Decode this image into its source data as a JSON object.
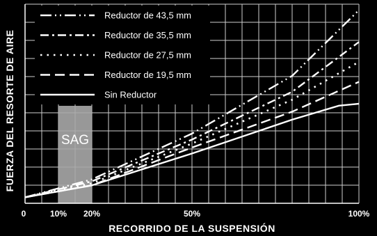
{
  "chart_data": {
    "type": "line",
    "xlabel": "RECORRIDO DE LA SUSPENSIÓN",
    "ylabel": "FUERZA DEL RESORTE DE AIRE",
    "xlim": [
      0,
      100
    ],
    "ylim": [
      0,
      100
    ],
    "grid": true,
    "legend_position": "top-left",
    "x_ticks": [
      {
        "value": 0,
        "label": "0"
      },
      {
        "value": 10,
        "label": "10%"
      },
      {
        "value": 20,
        "label": "20%"
      },
      {
        "value": 50,
        "label": "50%"
      },
      {
        "value": 100,
        "label": "100%"
      }
    ],
    "sag": {
      "label": "SAG",
      "from": 10,
      "to": 20
    },
    "series": [
      {
        "name": "Reductor de 43,5 mm",
        "style": "dash-dot-dot",
        "x": [
          0,
          20,
          50,
          80,
          100
        ],
        "y": [
          3,
          12,
          35,
          64,
          97
        ]
      },
      {
        "name": "Reductor de 35,5 mm",
        "style": "dash-dot",
        "x": [
          0,
          20,
          50,
          80,
          100
        ],
        "y": [
          3,
          11,
          32,
          56,
          81
        ]
      },
      {
        "name": "Reductor de 27,5 mm",
        "style": "dotted",
        "x": [
          0,
          20,
          50,
          80,
          100
        ],
        "y": [
          3,
          10,
          30,
          52,
          71
        ]
      },
      {
        "name": "Reductor de 19,5 mm",
        "style": "dashed",
        "x": [
          0,
          20,
          50,
          80,
          100
        ],
        "y": [
          3,
          9,
          28,
          46,
          61
        ]
      },
      {
        "name": "Sin Reductor",
        "style": "solid",
        "x": [
          0,
          20,
          50,
          80,
          94,
          100
        ],
        "y": [
          3,
          9,
          25,
          42,
          49,
          50
        ]
      }
    ]
  }
}
